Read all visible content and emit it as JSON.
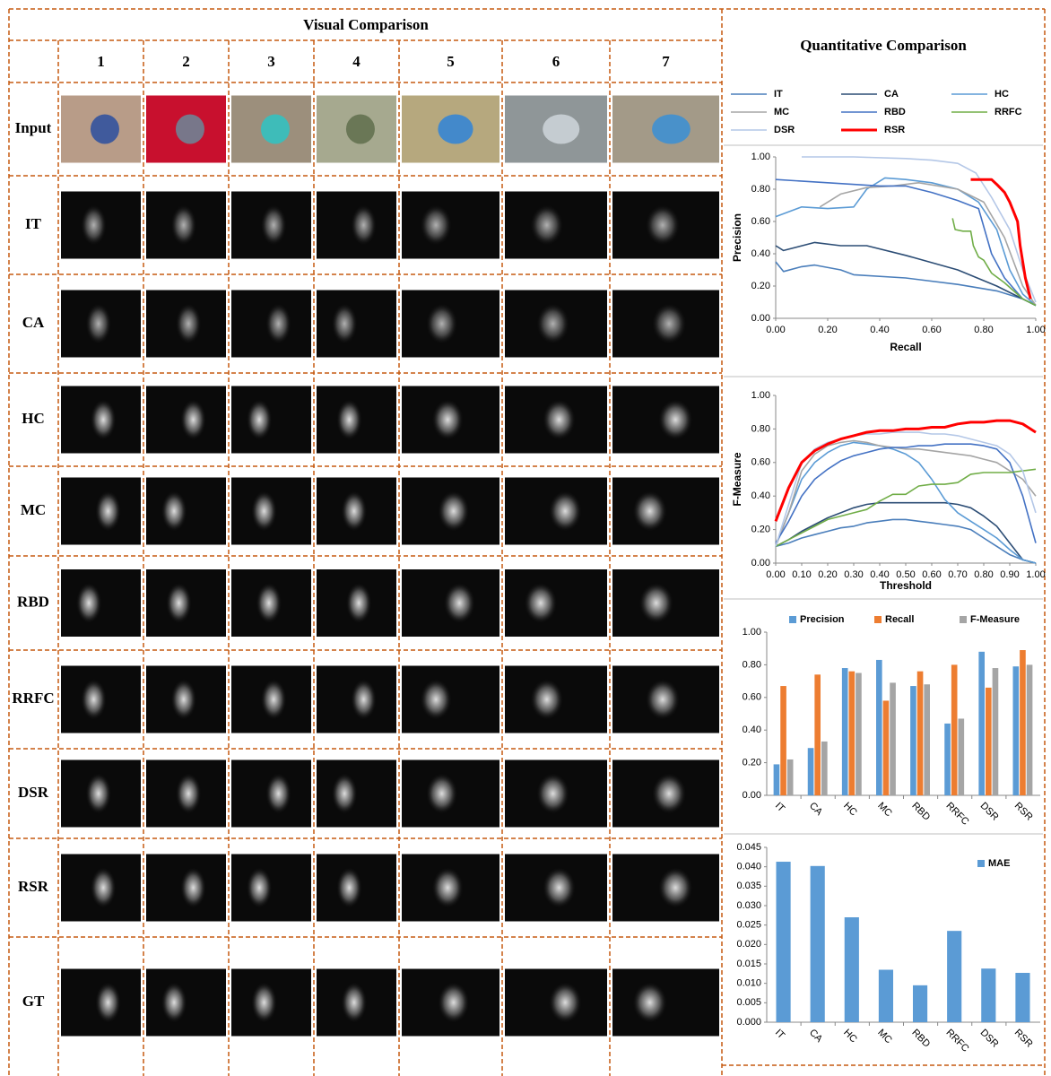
{
  "visual_comparison": {
    "title": "Visual Comparison",
    "columns": [
      "1",
      "2",
      "3",
      "4",
      "5",
      "6",
      "7"
    ],
    "rows": [
      "Input",
      "IT",
      "CA",
      "HC",
      "MC",
      "RBD",
      "RRFC",
      "DSR",
      "RSR",
      "GT"
    ]
  },
  "quantitative_comparison": {
    "title": "Quantitative Comparison"
  },
  "chart_data": [
    {
      "type": "line",
      "x_label": "Recall",
      "y_label": "Precision",
      "xlim": [
        0,
        1
      ],
      "ylim": [
        0,
        1
      ],
      "xticks": [
        {
          "value": 0,
          "label": "0.00"
        },
        {
          "value": 0.2,
          "label": "0.20"
        },
        {
          "value": 0.4,
          "label": "0.40"
        },
        {
          "value": 0.6,
          "label": "0.60"
        },
        {
          "value": 0.8,
          "label": "0.80"
        },
        {
          "value": 1,
          "label": "1.00"
        }
      ],
      "yticks": [
        {
          "value": 0,
          "label": "0.00"
        },
        {
          "value": 0.2,
          "label": "0.20"
        },
        {
          "value": 0.4,
          "label": "0.40"
        },
        {
          "value": 0.6,
          "label": "0.60"
        },
        {
          "value": 0.8,
          "label": "0.80"
        },
        {
          "value": 1,
          "label": "1.00"
        }
      ],
      "legend": "top",
      "series": [
        {
          "name": "IT",
          "color": "#4a7ebb",
          "x": [
            0,
            0.03,
            0.1,
            0.15,
            0.25,
            0.3,
            0.5,
            0.7,
            0.85,
            0.95,
            1.0
          ],
          "values": [
            0.35,
            0.29,
            0.32,
            0.33,
            0.3,
            0.27,
            0.25,
            0.21,
            0.17,
            0.12,
            0.08
          ]
        },
        {
          "name": "CA",
          "color": "#2c4d75",
          "x": [
            0,
            0.03,
            0.15,
            0.25,
            0.35,
            0.5,
            0.7,
            0.85,
            0.95,
            1.0
          ],
          "values": [
            0.45,
            0.42,
            0.47,
            0.45,
            0.45,
            0.39,
            0.3,
            0.2,
            0.12,
            0.08
          ]
        },
        {
          "name": "HC",
          "color": "#5b9bd5",
          "x": [
            0,
            0.1,
            0.2,
            0.3,
            0.35,
            0.42,
            0.5,
            0.6,
            0.7,
            0.78,
            0.85,
            0.9,
            0.95,
            1.0
          ],
          "values": [
            0.63,
            0.69,
            0.68,
            0.69,
            0.8,
            0.87,
            0.86,
            0.84,
            0.8,
            0.72,
            0.55,
            0.3,
            0.15,
            0.08
          ]
        },
        {
          "name": "MC",
          "color": "#a5a5a5",
          "x": [
            0.17,
            0.25,
            0.35,
            0.45,
            0.55,
            0.7,
            0.8,
            0.88,
            0.95,
            1.0
          ],
          "values": [
            0.69,
            0.77,
            0.81,
            0.82,
            0.84,
            0.8,
            0.72,
            0.5,
            0.2,
            0.08
          ]
        },
        {
          "name": "RBD",
          "color": "#4472c4",
          "x": [
            0,
            0.2,
            0.4,
            0.5,
            0.6,
            0.7,
            0.78,
            0.83,
            0.88,
            0.95,
            1.0
          ],
          "values": [
            0.86,
            0.84,
            0.82,
            0.82,
            0.78,
            0.73,
            0.68,
            0.4,
            0.25,
            0.12,
            0.08
          ]
        },
        {
          "name": "RRFC",
          "color": "#70ad47",
          "x": [
            0.68,
            0.69,
            0.72,
            0.75,
            0.76,
            0.78,
            0.8,
            0.83,
            0.88,
            0.95,
            1.0
          ],
          "values": [
            0.62,
            0.55,
            0.54,
            0.54,
            0.45,
            0.38,
            0.36,
            0.28,
            0.22,
            0.12,
            0.08
          ]
        },
        {
          "name": "DSR",
          "color": "#b4c7e7",
          "x": [
            0.1,
            0.3,
            0.5,
            0.6,
            0.7,
            0.77,
            0.83,
            0.9,
            0.95,
            1.0
          ],
          "values": [
            1.0,
            1.0,
            0.99,
            0.98,
            0.96,
            0.9,
            0.75,
            0.55,
            0.3,
            0.1
          ]
        },
        {
          "name": "RSR",
          "color": "#ff0000",
          "line_width": 3,
          "x": [
            0.75,
            0.83,
            0.85,
            0.88,
            0.9,
            0.93,
            0.94,
            0.96,
            0.98
          ],
          "values": [
            0.86,
            0.86,
            0.83,
            0.78,
            0.72,
            0.6,
            0.45,
            0.25,
            0.12
          ]
        }
      ]
    },
    {
      "type": "line",
      "x_label": "Threshold",
      "y_label": "F-Measure",
      "xlim": [
        0,
        1
      ],
      "ylim": [
        0,
        1
      ],
      "xticks": [
        {
          "value": 0,
          "label": "0.00"
        },
        {
          "value": 0.1,
          "label": "0.10"
        },
        {
          "value": 0.2,
          "label": "0.20"
        },
        {
          "value": 0.3,
          "label": "0.30"
        },
        {
          "value": 0.4,
          "label": "0.40"
        },
        {
          "value": 0.5,
          "label": "0.50"
        },
        {
          "value": 0.6,
          "label": "0.60"
        },
        {
          "value": 0.7,
          "label": "0.70"
        },
        {
          "value": 0.8,
          "label": "0.80"
        },
        {
          "value": 0.9,
          "label": "0.90"
        },
        {
          "value": 1,
          "label": "1.00"
        }
      ],
      "yticks": [
        {
          "value": 0,
          "label": "0.00"
        },
        {
          "value": 0.2,
          "label": "0.20"
        },
        {
          "value": 0.4,
          "label": "0.40"
        },
        {
          "value": 0.6,
          "label": "0.60"
        },
        {
          "value": 0.8,
          "label": "0.80"
        },
        {
          "value": 1,
          "label": "1.00"
        }
      ],
      "x": [
        0,
        0.05,
        0.1,
        0.15,
        0.2,
        0.25,
        0.3,
        0.35,
        0.4,
        0.45,
        0.5,
        0.55,
        0.6,
        0.65,
        0.7,
        0.75,
        0.8,
        0.85,
        0.9,
        0.95,
        1.0
      ],
      "series": [
        {
          "name": "IT",
          "color": "#4a7ebb",
          "values": [
            0.1,
            0.12,
            0.15,
            0.17,
            0.19,
            0.21,
            0.22,
            0.24,
            0.25,
            0.26,
            0.26,
            0.25,
            0.24,
            0.23,
            0.22,
            0.2,
            0.15,
            0.1,
            0.05,
            0.02,
            0.0
          ]
        },
        {
          "name": "CA",
          "color": "#2c4d75",
          "values": [
            0.1,
            0.14,
            0.19,
            0.23,
            0.27,
            0.3,
            0.33,
            0.35,
            0.36,
            0.36,
            0.36,
            0.36,
            0.36,
            0.36,
            0.35,
            0.33,
            0.28,
            0.22,
            0.12,
            0.02,
            0.0
          ]
        },
        {
          "name": "HC",
          "color": "#5b9bd5",
          "values": [
            0.1,
            0.3,
            0.5,
            0.6,
            0.66,
            0.7,
            0.72,
            0.71,
            0.7,
            0.68,
            0.65,
            0.6,
            0.5,
            0.38,
            0.3,
            0.25,
            0.2,
            0.15,
            0.08,
            0.02,
            0.0
          ]
        },
        {
          "name": "MC",
          "color": "#a5a5a5",
          "values": [
            0.1,
            0.3,
            0.55,
            0.65,
            0.7,
            0.72,
            0.73,
            0.72,
            0.7,
            0.69,
            0.68,
            0.68,
            0.67,
            0.66,
            0.65,
            0.64,
            0.62,
            0.6,
            0.55,
            0.5,
            0.4
          ]
        },
        {
          "name": "RBD",
          "color": "#4472c4",
          "values": [
            0.12,
            0.25,
            0.4,
            0.5,
            0.56,
            0.61,
            0.64,
            0.66,
            0.68,
            0.69,
            0.69,
            0.7,
            0.7,
            0.71,
            0.71,
            0.71,
            0.7,
            0.68,
            0.6,
            0.4,
            0.12
          ]
        },
        {
          "name": "RRFC",
          "color": "#70ad47",
          "values": [
            0.1,
            0.14,
            0.18,
            0.22,
            0.26,
            0.28,
            0.3,
            0.32,
            0.37,
            0.41,
            0.41,
            0.46,
            0.47,
            0.47,
            0.48,
            0.53,
            0.54,
            0.54,
            0.54,
            0.55,
            0.56
          ]
        },
        {
          "name": "DSR",
          "color": "#b4c7e7",
          "values": [
            0.1,
            0.35,
            0.6,
            0.68,
            0.72,
            0.74,
            0.76,
            0.77,
            0.77,
            0.78,
            0.78,
            0.78,
            0.77,
            0.77,
            0.76,
            0.74,
            0.72,
            0.7,
            0.65,
            0.55,
            0.3
          ]
        },
        {
          "name": "RSR",
          "color": "#ff0000",
          "line_width": 3,
          "values": [
            0.25,
            0.45,
            0.6,
            0.67,
            0.71,
            0.74,
            0.76,
            0.78,
            0.79,
            0.79,
            0.8,
            0.8,
            0.81,
            0.81,
            0.83,
            0.84,
            0.84,
            0.85,
            0.85,
            0.83,
            0.78
          ]
        }
      ]
    },
    {
      "type": "bar",
      "categories": [
        "IT",
        "CA",
        "HC",
        "MC",
        "RBD",
        "RRFC",
        "DSR",
        "RSR"
      ],
      "ylim": [
        0,
        1
      ],
      "yticks": [
        {
          "value": 0,
          "label": "0.00"
        },
        {
          "value": 0.2,
          "label": "0.20"
        },
        {
          "value": 0.4,
          "label": "0.40"
        },
        {
          "value": 0.6,
          "label": "0.60"
        },
        {
          "value": 0.8,
          "label": "0.80"
        },
        {
          "value": 1,
          "label": "1.00"
        }
      ],
      "legend": "top",
      "series": [
        {
          "name": "Precision",
          "color": "#5b9bd5",
          "values": [
            0.19,
            0.29,
            0.78,
            0.83,
            0.67,
            0.44,
            0.88,
            0.79
          ]
        },
        {
          "name": "Recall",
          "color": "#ed7d31",
          "values": [
            0.67,
            0.74,
            0.76,
            0.58,
            0.76,
            0.8,
            0.66,
            0.89
          ]
        },
        {
          "name": "F-Measure",
          "color": "#a5a5a5",
          "values": [
            0.22,
            0.33,
            0.75,
            0.69,
            0.68,
            0.47,
            0.78,
            0.8
          ]
        }
      ]
    },
    {
      "type": "bar",
      "categories": [
        "IT",
        "CA",
        "HC",
        "MC",
        "RBD",
        "RRFC",
        "DSR",
        "RSR"
      ],
      "ylim": [
        0,
        0.045
      ],
      "yticks": [
        {
          "value": 0,
          "label": "0.000"
        },
        {
          "value": 0.005,
          "label": "0.005"
        },
        {
          "value": 0.01,
          "label": "0.010"
        },
        {
          "value": 0.015,
          "label": "0.015"
        },
        {
          "value": 0.02,
          "label": "0.020"
        },
        {
          "value": 0.025,
          "label": "0.025"
        },
        {
          "value": 0.03,
          "label": "0.030"
        },
        {
          "value": 0.035,
          "label": "0.035"
        },
        {
          "value": 0.04,
          "label": "0.040"
        },
        {
          "value": 0.045,
          "label": "0.045"
        }
      ],
      "legend": "top-right",
      "series": [
        {
          "name": "MAE",
          "color": "#5b9bd5",
          "values": [
            0.0413,
            0.0402,
            0.027,
            0.0135,
            0.0095,
            0.0235,
            0.0138,
            0.0127
          ]
        }
      ]
    }
  ]
}
